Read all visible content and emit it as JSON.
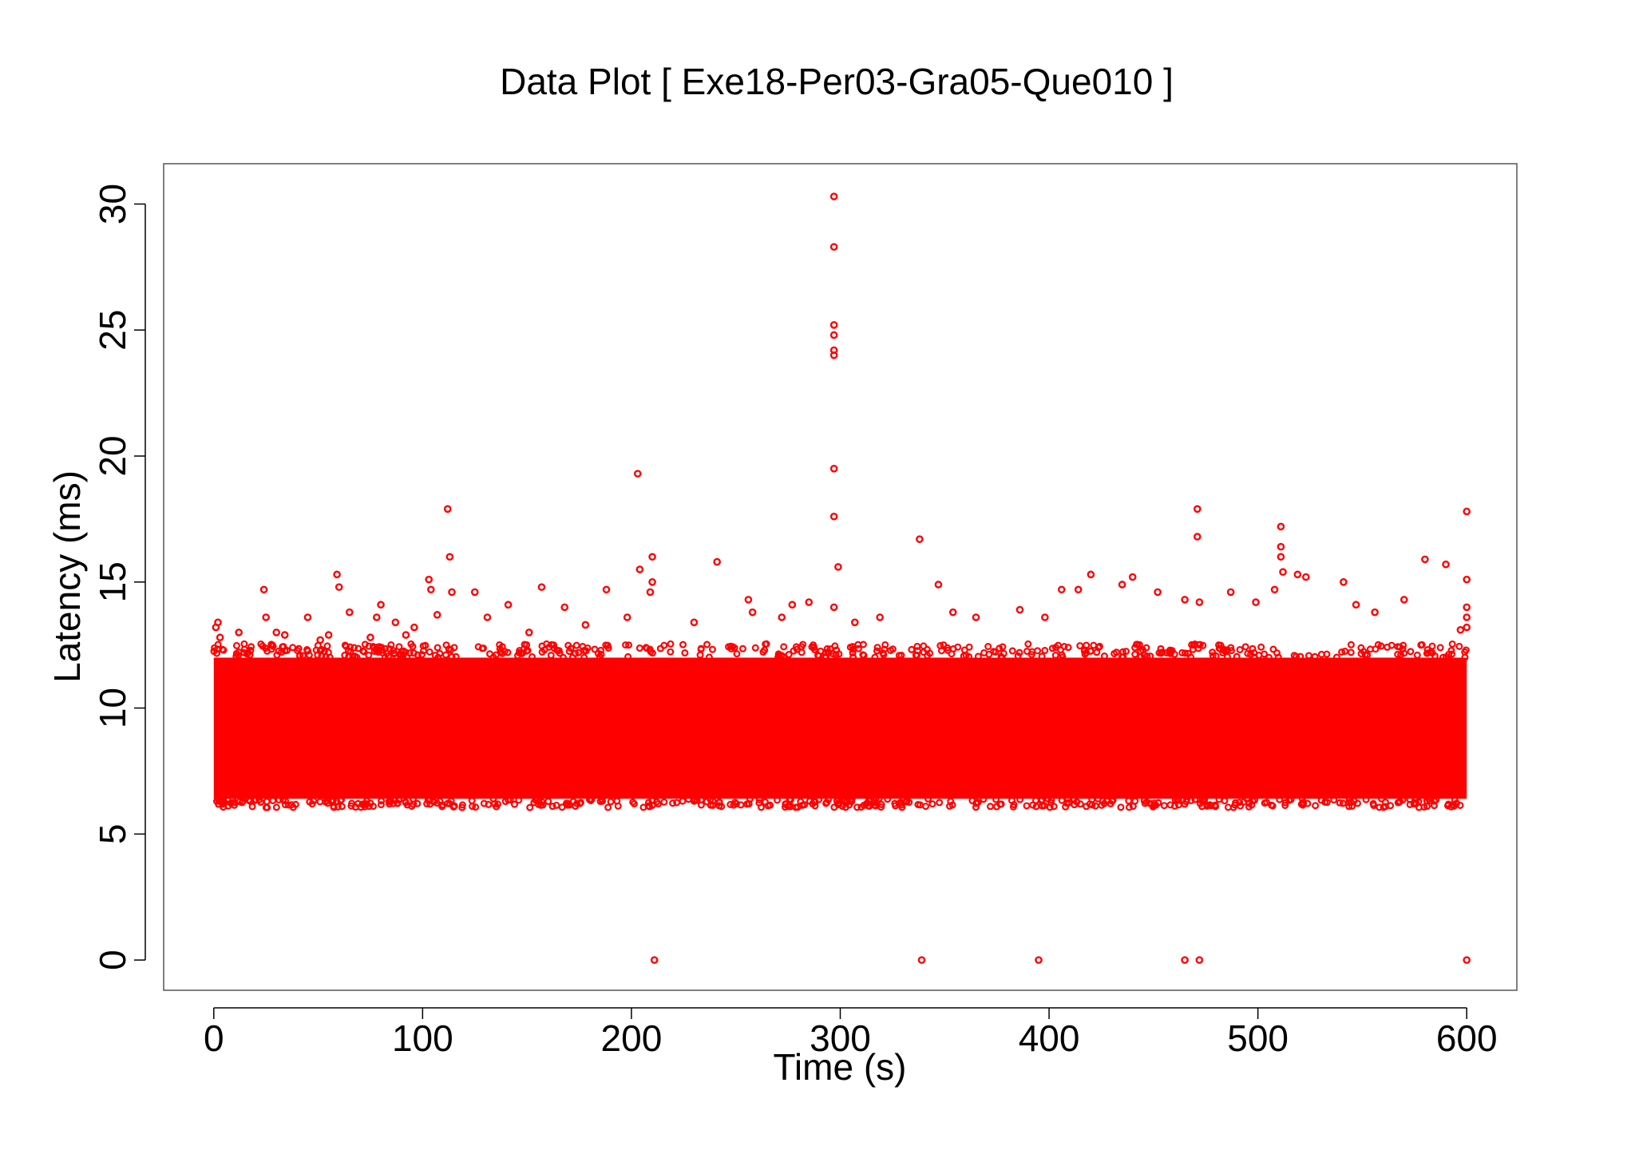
{
  "chart_data": {
    "type": "scatter",
    "title": "Data Plot [ Exe18-Per03-Gra05-Que010 ]",
    "xlabel": "Time (s)",
    "ylabel": "Latency (ms)",
    "xlim": [
      -24,
      624
    ],
    "ylim": [
      -1.2,
      31.6
    ],
    "x_ticks": [
      0,
      100,
      200,
      300,
      400,
      500,
      600
    ],
    "y_ticks": [
      0,
      5,
      10,
      15,
      20,
      25,
      30
    ],
    "x_tick_labels": [
      "0",
      "100",
      "200",
      "300",
      "400",
      "500",
      "600"
    ],
    "y_tick_labels": [
      "0",
      "5",
      "10",
      "15",
      "20",
      "25",
      "30"
    ],
    "grid": false,
    "legend": "none",
    "series": [
      {
        "color": "#ff0000",
        "marker": "open-circle",
        "description_of_bulk": "dense band of samples from t=0 to t=600 s",
        "bulk_band": {
          "x_range": [
            0,
            600
          ],
          "y_range": [
            6.4,
            12.0
          ],
          "center": 9.0
        },
        "points": [
          {
            "x": 1,
            "y": 13.2
          },
          {
            "x": 2,
            "y": 13.4
          },
          {
            "x": 3,
            "y": 12.8
          },
          {
            "x": 12,
            "y": 13.0
          },
          {
            "x": 24,
            "y": 14.7
          },
          {
            "x": 25,
            "y": 13.6
          },
          {
            "x": 30,
            "y": 13.0
          },
          {
            "x": 34,
            "y": 12.9
          },
          {
            "x": 45,
            "y": 13.6
          },
          {
            "x": 51,
            "y": 12.7
          },
          {
            "x": 55,
            "y": 12.9
          },
          {
            "x": 59,
            "y": 15.3
          },
          {
            "x": 60,
            "y": 14.8
          },
          {
            "x": 65,
            "y": 13.8
          },
          {
            "x": 75,
            "y": 12.8
          },
          {
            "x": 78,
            "y": 13.6
          },
          {
            "x": 80,
            "y": 14.1
          },
          {
            "x": 87,
            "y": 13.4
          },
          {
            "x": 92,
            "y": 12.9
          },
          {
            "x": 96,
            "y": 13.2
          },
          {
            "x": 103,
            "y": 15.1
          },
          {
            "x": 104,
            "y": 14.7
          },
          {
            "x": 107,
            "y": 13.7
          },
          {
            "x": 112,
            "y": 17.9
          },
          {
            "x": 113,
            "y": 16.0
          },
          {
            "x": 114,
            "y": 14.6
          },
          {
            "x": 125,
            "y": 14.6
          },
          {
            "x": 131,
            "y": 13.6
          },
          {
            "x": 141,
            "y": 14.1
          },
          {
            "x": 151,
            "y": 13.0
          },
          {
            "x": 157,
            "y": 14.8
          },
          {
            "x": 168,
            "y": 14.0
          },
          {
            "x": 178,
            "y": 13.3
          },
          {
            "x": 188,
            "y": 14.7
          },
          {
            "x": 198,
            "y": 13.6
          },
          {
            "x": 203,
            "y": 19.3
          },
          {
            "x": 204,
            "y": 15.5
          },
          {
            "x": 209,
            "y": 14.6
          },
          {
            "x": 210,
            "y": 16.0
          },
          {
            "x": 210,
            "y": 15.0
          },
          {
            "x": 211,
            "y": 0.0
          },
          {
            "x": 230,
            "y": 13.4
          },
          {
            "x": 241,
            "y": 15.8
          },
          {
            "x": 256,
            "y": 14.3
          },
          {
            "x": 258,
            "y": 13.8
          },
          {
            "x": 272,
            "y": 13.6
          },
          {
            "x": 277,
            "y": 14.1
          },
          {
            "x": 285,
            "y": 14.2
          },
          {
            "x": 297,
            "y": 30.3
          },
          {
            "x": 297,
            "y": 28.3
          },
          {
            "x": 297,
            "y": 25.2
          },
          {
            "x": 297,
            "y": 24.8
          },
          {
            "x": 297,
            "y": 24.2
          },
          {
            "x": 297,
            "y": 24.0
          },
          {
            "x": 297,
            "y": 19.5
          },
          {
            "x": 297,
            "y": 17.6
          },
          {
            "x": 299,
            "y": 15.6
          },
          {
            "x": 297,
            "y": 14.0
          },
          {
            "x": 307,
            "y": 13.4
          },
          {
            "x": 319,
            "y": 13.6
          },
          {
            "x": 338,
            "y": 16.7
          },
          {
            "x": 339,
            "y": 0.0
          },
          {
            "x": 347,
            "y": 14.9
          },
          {
            "x": 354,
            "y": 13.8
          },
          {
            "x": 365,
            "y": 13.6
          },
          {
            "x": 386,
            "y": 13.9
          },
          {
            "x": 395,
            "y": 0.0
          },
          {
            "x": 398,
            "y": 13.6
          },
          {
            "x": 406,
            "y": 14.7
          },
          {
            "x": 414,
            "y": 14.7
          },
          {
            "x": 420,
            "y": 15.3
          },
          {
            "x": 435,
            "y": 14.9
          },
          {
            "x": 440,
            "y": 15.2
          },
          {
            "x": 452,
            "y": 14.6
          },
          {
            "x": 465,
            "y": 14.3
          },
          {
            "x": 465,
            "y": 0.0
          },
          {
            "x": 471,
            "y": 17.9
          },
          {
            "x": 471,
            "y": 16.8
          },
          {
            "x": 472,
            "y": 14.2
          },
          {
            "x": 472,
            "y": 0.0
          },
          {
            "x": 487,
            "y": 14.6
          },
          {
            "x": 499,
            "y": 14.2
          },
          {
            "x": 508,
            "y": 14.7
          },
          {
            "x": 511,
            "y": 17.2
          },
          {
            "x": 511,
            "y": 16.4
          },
          {
            "x": 511,
            "y": 16.0
          },
          {
            "x": 512,
            "y": 15.4
          },
          {
            "x": 519,
            "y": 15.3
          },
          {
            "x": 523,
            "y": 15.2
          },
          {
            "x": 541,
            "y": 15.0
          },
          {
            "x": 547,
            "y": 14.1
          },
          {
            "x": 556,
            "y": 13.8
          },
          {
            "x": 570,
            "y": 14.3
          },
          {
            "x": 580,
            "y": 15.9
          },
          {
            "x": 590,
            "y": 15.7
          },
          {
            "x": 597,
            "y": 13.1
          },
          {
            "x": 600,
            "y": 17.8
          },
          {
            "x": 600,
            "y": 15.1
          },
          {
            "x": 600,
            "y": 14.0
          },
          {
            "x": 600,
            "y": 13.6
          },
          {
            "x": 600,
            "y": 13.2
          },
          {
            "x": 600,
            "y": 0.0
          }
        ]
      }
    ]
  }
}
